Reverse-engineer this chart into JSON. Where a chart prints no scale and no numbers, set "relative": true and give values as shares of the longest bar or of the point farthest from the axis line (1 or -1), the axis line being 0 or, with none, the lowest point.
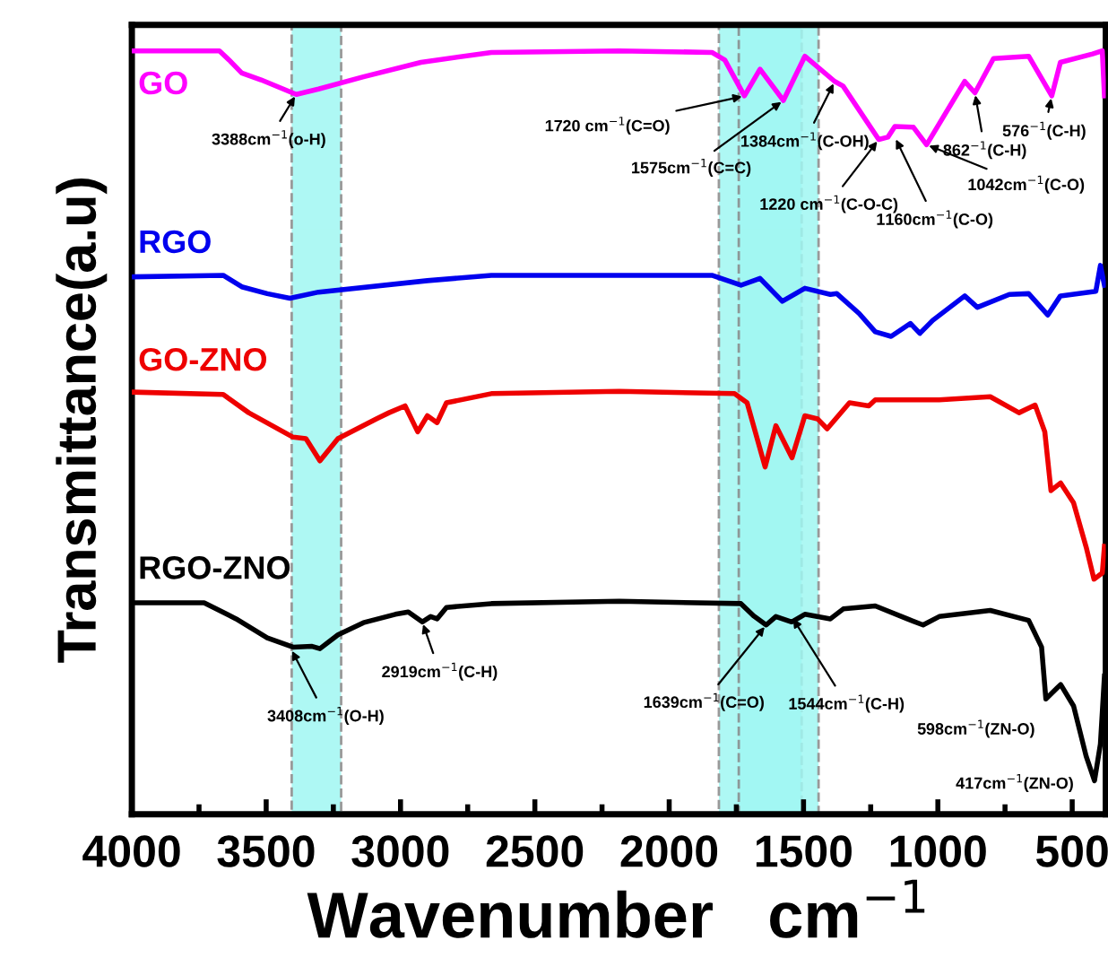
{
  "chart_data": {
    "type": "line",
    "relative": true,
    "xlabel": "Wavenumber   cm$^{−1}$",
    "ylabel": "Transmittance(a.u)",
    "xlim": [
      4000,
      375
    ],
    "xticks": [
      4000,
      3500,
      3000,
      2500,
      2000,
      1500,
      1000,
      500
    ],
    "tick_labels": "x",
    "grid": false,
    "line_style": "solid",
    "marker": "none",
    "series": [
      {
        "name": "GO",
        "color": "#ff00ff",
        "x": [
          3995,
          3674,
          3638,
          3591,
          3519,
          3388,
          3305,
          3138,
          2924,
          2662,
          2186,
          1841,
          1793,
          1720,
          1662,
          1575,
          1495,
          1384,
          1353,
          1220,
          1186,
          1160,
          1091,
          1042,
          900,
          862,
          793,
          662,
          576,
          544,
          424,
          388,
          380
        ],
        "values": [
          1.0,
          1.0,
          0.988,
          0.971,
          0.962,
          0.943,
          0.95,
          0.966,
          0.985,
          0.998,
          1.0,
          0.998,
          0.988,
          0.941,
          0.976,
          0.935,
          0.993,
          0.96,
          0.954,
          0.884,
          0.887,
          0.901,
          0.9,
          0.877,
          0.96,
          0.945,
          0.99,
          0.993,
          0.941,
          0.985,
          0.996,
          1.0,
          0.941
        ]
      },
      {
        "name": "RGO",
        "color": "#0000ee",
        "x": [
          3995,
          3660,
          3591,
          3496,
          3412,
          3305,
          2900,
          2662,
          1841,
          1733,
          1662,
          1579,
          1495,
          1400,
          1376,
          1293,
          1233,
          1174,
          1102,
          1067,
          1019,
          900,
          853,
          734,
          662,
          591,
          544,
          412,
          395,
          380
        ],
        "values": [
          0.704,
          0.706,
          0.691,
          0.682,
          0.676,
          0.684,
          0.699,
          0.706,
          0.706,
          0.693,
          0.702,
          0.672,
          0.689,
          0.681,
          0.682,
          0.656,
          0.632,
          0.626,
          0.643,
          0.63,
          0.647,
          0.679,
          0.664,
          0.681,
          0.682,
          0.654,
          0.679,
          0.685,
          0.719,
          0.693
        ]
      },
      {
        "name": "GO-ZNO",
        "color": "#ee0000",
        "x": [
          3995,
          3660,
          3565,
          3400,
          3352,
          3300,
          3233,
          3090,
          3043,
          2983,
          2936,
          2900,
          2864,
          2829,
          2662,
          2186,
          1757,
          1710,
          1643,
          1603,
          1543,
          1495,
          1448,
          1412,
          1329,
          1257,
          1233,
          995,
          805,
          698,
          638,
          602,
          579,
          543,
          495,
          448,
          419,
          388,
          380
        ],
        "values": [
          0.553,
          0.55,
          0.526,
          0.494,
          0.492,
          0.463,
          0.492,
          0.518,
          0.526,
          0.535,
          0.501,
          0.522,
          0.513,
          0.539,
          0.551,
          0.554,
          0.551,
          0.539,
          0.455,
          0.509,
          0.467,
          0.522,
          0.518,
          0.505,
          0.539,
          0.535,
          0.543,
          0.543,
          0.547,
          0.526,
          0.536,
          0.501,
          0.424,
          0.434,
          0.408,
          0.35,
          0.308,
          0.316,
          0.351
        ]
      },
      {
        "name": "RGO-ZNO",
        "color": "#000000",
        "x": [
          3995,
          3731,
          3612,
          3496,
          3400,
          3329,
          3300,
          3233,
          3138,
          3019,
          2971,
          2919,
          2888,
          2864,
          2829,
          2662,
          2186,
          1733,
          1686,
          1639,
          1603,
          1544,
          1495,
          1400,
          1352,
          1233,
          1114,
          1055,
          995,
          805,
          662,
          614,
          598,
          543,
          495,
          448,
          417,
          395,
          380
        ],
        "values": [
          0.277,
          0.277,
          0.256,
          0.231,
          0.219,
          0.22,
          0.217,
          0.235,
          0.251,
          0.262,
          0.265,
          0.252,
          0.259,
          0.256,
          0.271,
          0.276,
          0.279,
          0.276,
          0.26,
          0.248,
          0.259,
          0.252,
          0.262,
          0.256,
          0.269,
          0.273,
          0.256,
          0.248,
          0.259,
          0.267,
          0.254,
          0.219,
          0.151,
          0.17,
          0.142,
          0.076,
          0.044,
          0.092,
          0.181
        ]
      }
    ],
    "bands": [
      {
        "axis": "x",
        "from": 1815,
        "to": 1507,
        "color": "#a0f7f2"
      },
      {
        "axis": "x",
        "from": 1741,
        "to": 1444,
        "color": "#a0f7f2"
      },
      {
        "axis": "x",
        "from": 3405,
        "to": 3221,
        "color": "#a0f7f2"
      }
    ],
    "annotations": [
      {
        "text": "3388cm$^{−1}$(o-H)",
        "x": 3388,
        "y": 0.943
      },
      {
        "text": "1720 cm$^{−1}$(C=O)",
        "x": 1720,
        "y": 0.941
      },
      {
        "text": "1575cm$^{−1}$(C=C)",
        "x": 1575,
        "y": 0.935
      },
      {
        "text": "1384cm$^{−1}$(C-OH)",
        "x": 1384,
        "y": 0.96
      },
      {
        "text": "1220 cm$^{−1}$(C-O-C)",
        "x": 1220,
        "y": 0.884
      },
      {
        "text": "1160cm$^{−1}$(C-O)",
        "x": 1160,
        "y": 0.887
      },
      {
        "text": "1042cm$^{−1}$(C-O)",
        "x": 1042,
        "y": 0.877
      },
      {
        "text": "862$^{−1}$(C-H)",
        "x": 862,
        "y": 0.945
      },
      {
        "text": "576$^{−1}$(C-H)",
        "x": 576,
        "y": 0.941
      },
      {
        "text": "3408cm$^{−1}$(O-H)",
        "x": 3408,
        "y": 0.217
      },
      {
        "text": "2919cm$^{−1}$(C-H)",
        "x": 2919,
        "y": 0.252
      },
      {
        "text": "1639cm$^{−1}$(C=O)",
        "x": 1639,
        "y": 0.248
      },
      {
        "text": "1544cm$^{−1}$(C-H)",
        "x": 1544,
        "y": 0.259
      },
      {
        "text": "598cm$^{−1}$(ZN-O)",
        "x": 598,
        "y": 0.151
      },
      {
        "text": "417cm$^{−1}$(ZN-O)",
        "x": 417,
        "y": 0.044
      }
    ]
  }
}
